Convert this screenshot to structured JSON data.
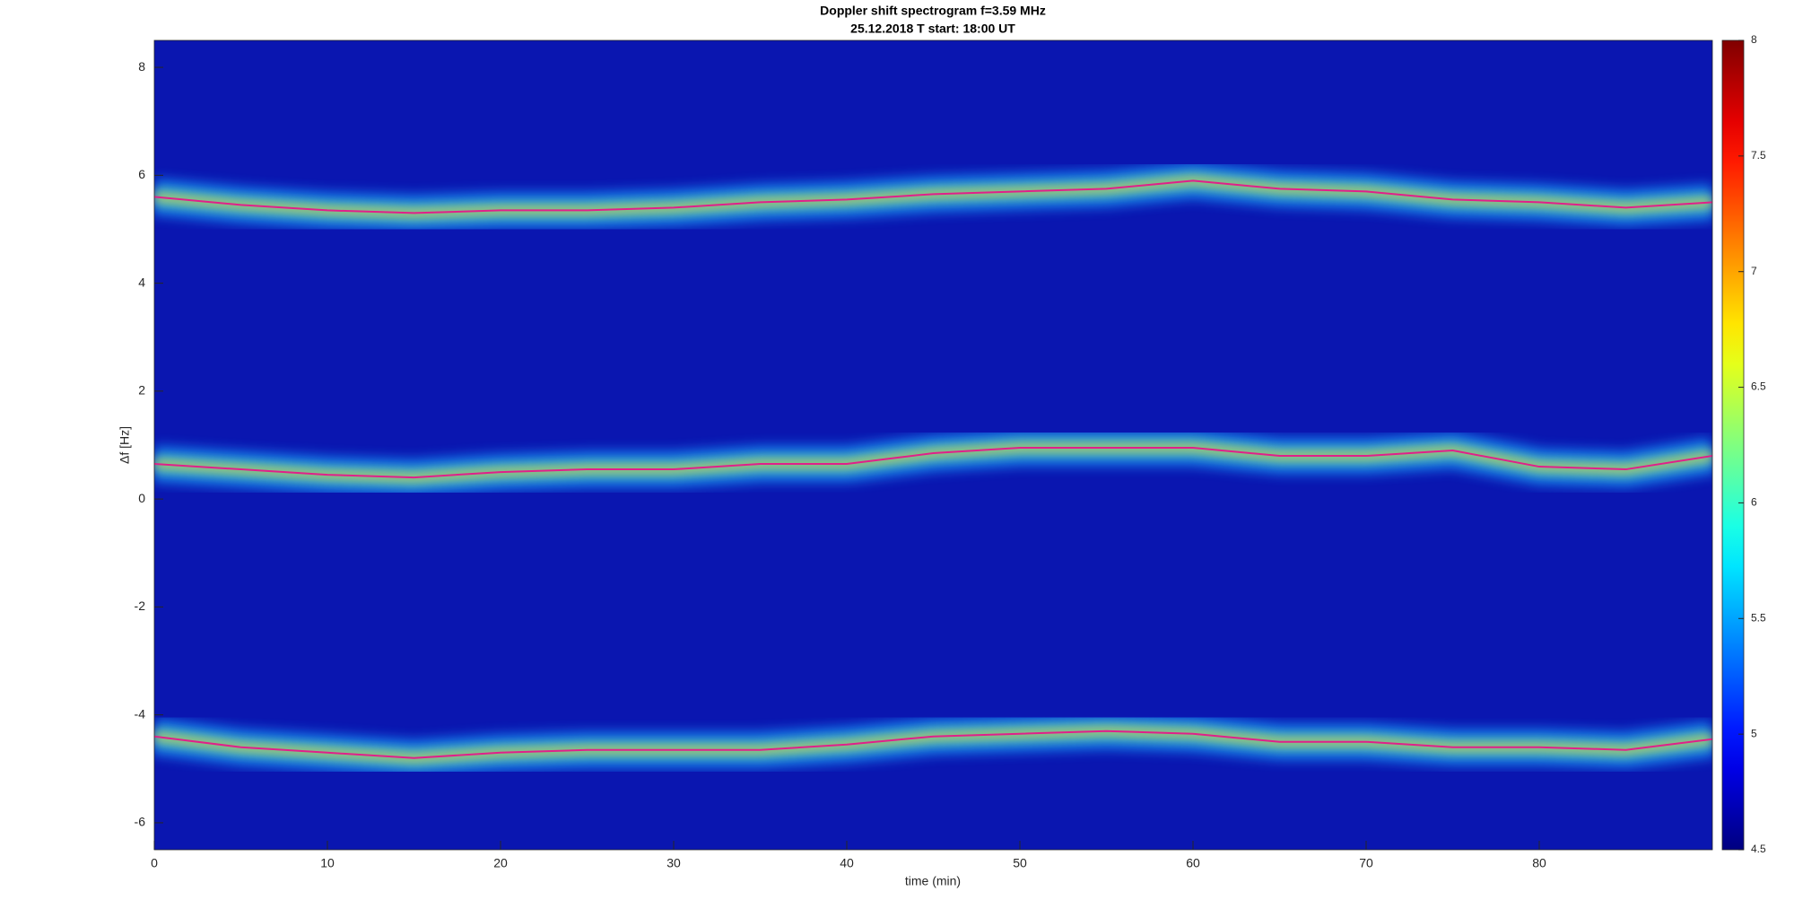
{
  "chart_data": {
    "type": "spectrogram",
    "title": [
      "Doppler shift spectrogram f=3.59 MHz",
      "25.12.2018   T start: 18:00 UT"
    ],
    "xlabel": "time (min)",
    "ylabel": "Δf [Hz]",
    "x": [
      0,
      5,
      10,
      15,
      20,
      25,
      30,
      35,
      40,
      45,
      50,
      55,
      60,
      65,
      70,
      75,
      80,
      85,
      90
    ],
    "series": [
      {
        "color": "#e0208a",
        "values": [
          5.6,
          5.45,
          5.35,
          5.3,
          5.35,
          5.35,
          5.4,
          5.5,
          5.55,
          5.65,
          5.7,
          5.75,
          5.9,
          5.75,
          5.7,
          5.55,
          5.5,
          5.4,
          5.5
        ]
      },
      {
        "color": "#e0208a",
        "values": [
          0.65,
          0.55,
          0.45,
          0.4,
          0.5,
          0.55,
          0.55,
          0.65,
          0.65,
          0.85,
          0.95,
          0.95,
          0.95,
          0.8,
          0.8,
          0.9,
          0.6,
          0.55,
          0.8
        ]
      },
      {
        "color": "#e0208a",
        "values": [
          -4.4,
          -4.6,
          -4.7,
          -4.8,
          -4.7,
          -4.65,
          -4.65,
          -4.65,
          -4.55,
          -4.4,
          -4.35,
          -4.3,
          -4.35,
          -4.5,
          -4.5,
          -4.6,
          -4.6,
          -4.65,
          -4.45
        ]
      }
    ],
    "xlim": [
      0,
      90
    ],
    "xticks": [
      0,
      10,
      20,
      30,
      40,
      50,
      60,
      70,
      80
    ],
    "ylim": [
      -6.5,
      8.5
    ],
    "yticks": [
      -6,
      -4,
      -2,
      0,
      2,
      4,
      6,
      8
    ],
    "colorbar": {
      "lim": [
        4.5,
        8
      ],
      "ticks": [
        4.5,
        5,
        5.5,
        6,
        6.5,
        7,
        7.5,
        8
      ]
    }
  }
}
